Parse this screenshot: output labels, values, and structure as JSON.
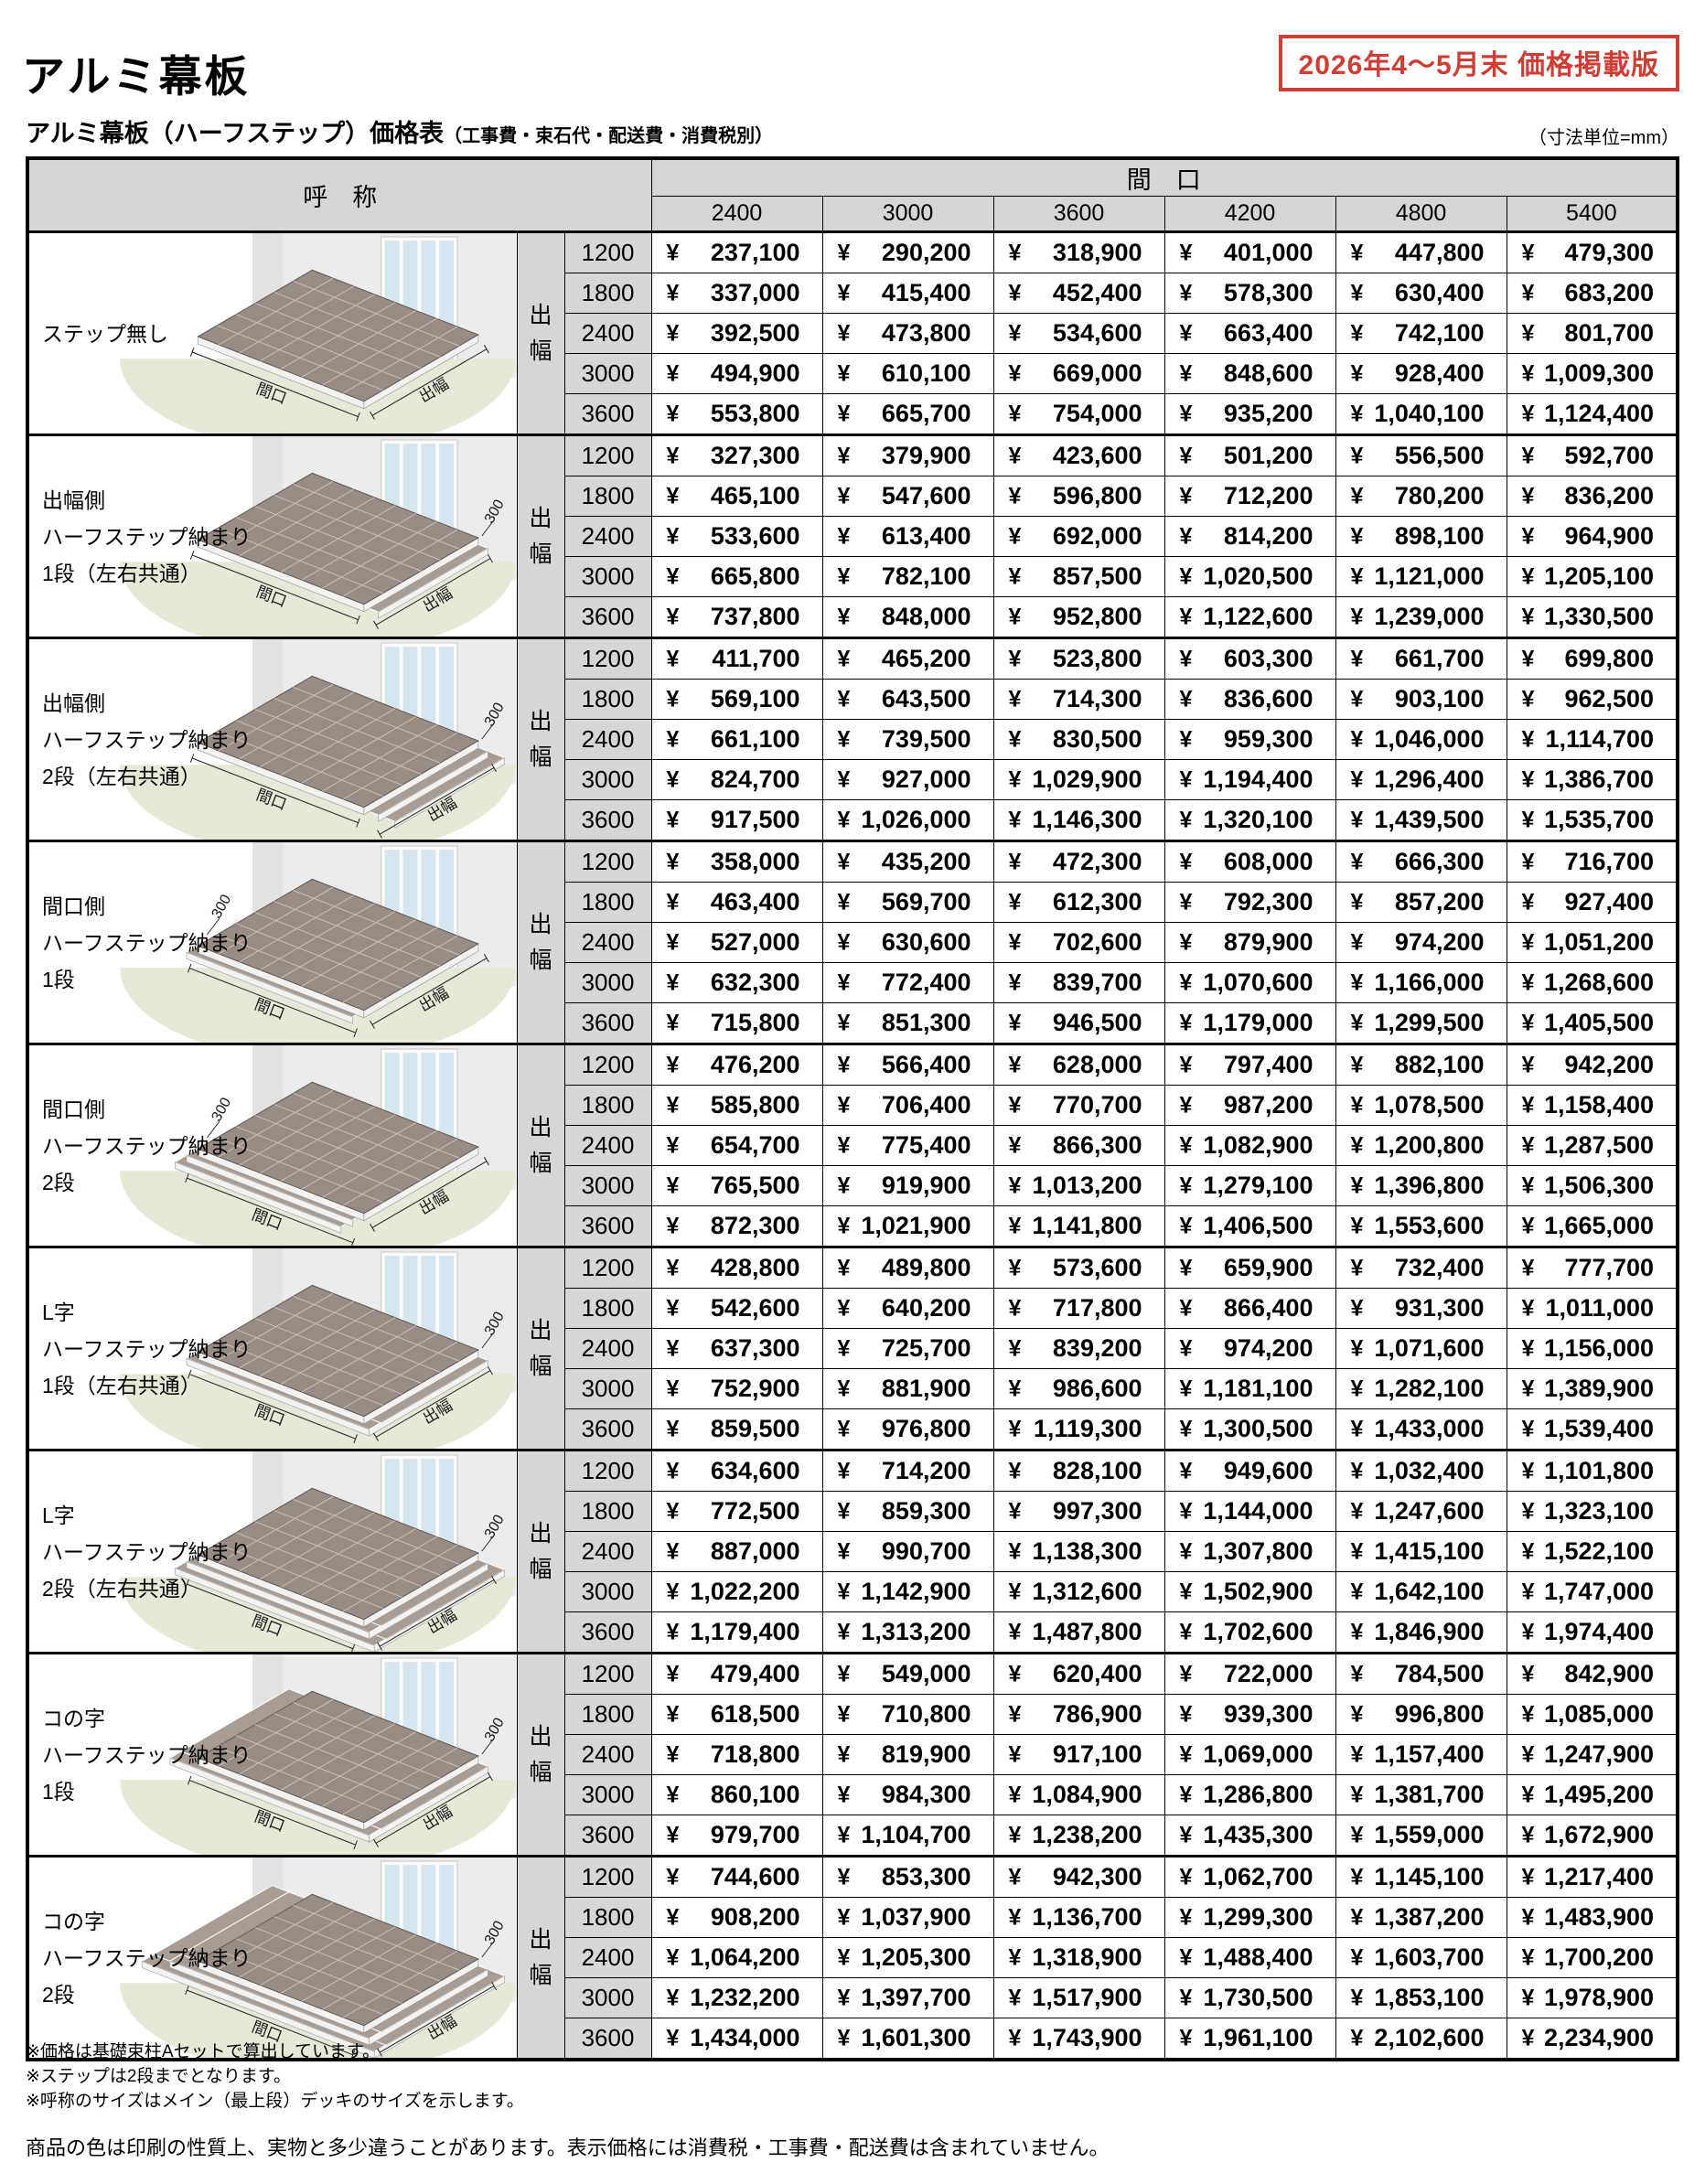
{
  "page": {
    "title": "アルミ幕板",
    "edition_badge": "2026年4～5月末 価格掲載版",
    "subtitle": "アルミ幕板（ハーフステップ）価格表",
    "subtitle_note": "（工事費・束石代・配送費・消費税別）",
    "unit_note": "（寸法単位=mm）",
    "footnotes": [
      "※価格は基礎束柱Aセットで算出しています。",
      "※ステップは2段までとなります。",
      "※呼称のサイズはメイン（最上段）デッキのサイズを示します。"
    ],
    "disclaimer": "商品の色は印刷の性質上、実物と多少違うことがあります。表示価格には消費税・工事費・配送費は含まれていません。"
  },
  "colors": {
    "accent": "#cf3e35",
    "header_gray": "#d5d6d8",
    "deck_top": "#998c84",
    "deck_grid": "#c9c0b9",
    "step_top": "#a99c93",
    "lawn": "#e5e9d6",
    "wall": "#ececec",
    "window_pane": "#d6e6f1"
  },
  "illustration": {
    "maguchi_label": "間口",
    "defuku_label": "出幅",
    "step_dim": "300"
  },
  "table": {
    "name_header": "呼　称",
    "width_header": "間　口",
    "depth_header": "出\n幅",
    "currency": "¥",
    "widths": [
      "2400",
      "3000",
      "3600",
      "4200",
      "4800",
      "5400"
    ],
    "depths": [
      "1200",
      "1800",
      "2400",
      "3000",
      "3600"
    ],
    "groups": [
      {
        "label": "ステップ無し",
        "illustration": {
          "steps": "none",
          "tiers": 0,
          "dim_side": null
        },
        "rows": [
          [
            "237,100",
            "290,200",
            "318,900",
            "401,000",
            "447,800",
            "479,300"
          ],
          [
            "337,000",
            "415,400",
            "452,400",
            "578,300",
            "630,400",
            "683,200"
          ],
          [
            "392,500",
            "473,800",
            "534,600",
            "663,400",
            "742,100",
            "801,700"
          ],
          [
            "494,900",
            "610,100",
            "669,000",
            "848,600",
            "928,400",
            "1,009,300"
          ],
          [
            "553,800",
            "665,700",
            "754,000",
            "935,200",
            "1,040,100",
            "1,124,400"
          ]
        ]
      },
      {
        "label": "出幅側\nハーフステップ納まり\n1段（左右共通）",
        "illustration": {
          "steps": "defuku",
          "tiers": 1,
          "dim_side": "right"
        },
        "rows": [
          [
            "327,300",
            "379,900",
            "423,600",
            "501,200",
            "556,500",
            "592,700"
          ],
          [
            "465,100",
            "547,600",
            "596,800",
            "712,200",
            "780,200",
            "836,200"
          ],
          [
            "533,600",
            "613,400",
            "692,000",
            "814,200",
            "898,100",
            "964,900"
          ],
          [
            "665,800",
            "782,100",
            "857,500",
            "1,020,500",
            "1,121,000",
            "1,205,100"
          ],
          [
            "737,800",
            "848,000",
            "952,800",
            "1,122,600",
            "1,239,000",
            "1,330,500"
          ]
        ]
      },
      {
        "label": "出幅側\nハーフステップ納まり\n2段（左右共通）",
        "illustration": {
          "steps": "defuku",
          "tiers": 2,
          "dim_side": "right"
        },
        "rows": [
          [
            "411,700",
            "465,200",
            "523,800",
            "603,300",
            "661,700",
            "699,800"
          ],
          [
            "569,100",
            "643,500",
            "714,300",
            "836,600",
            "903,100",
            "962,500"
          ],
          [
            "661,100",
            "739,500",
            "830,500",
            "959,300",
            "1,046,000",
            "1,114,700"
          ],
          [
            "824,700",
            "927,000",
            "1,029,900",
            "1,194,400",
            "1,296,400",
            "1,386,700"
          ],
          [
            "917,500",
            "1,026,000",
            "1,146,300",
            "1,320,100",
            "1,439,500",
            "1,535,700"
          ]
        ]
      },
      {
        "label": "間口側\nハーフステップ納まり\n1段",
        "illustration": {
          "steps": "maguchi",
          "tiers": 1,
          "dim_side": "left"
        },
        "rows": [
          [
            "358,000",
            "435,200",
            "472,300",
            "608,000",
            "666,300",
            "716,700"
          ],
          [
            "463,400",
            "569,700",
            "612,300",
            "792,300",
            "857,200",
            "927,400"
          ],
          [
            "527,000",
            "630,600",
            "702,600",
            "879,900",
            "974,200",
            "1,051,200"
          ],
          [
            "632,300",
            "772,400",
            "839,700",
            "1,070,600",
            "1,166,000",
            "1,268,600"
          ],
          [
            "715,800",
            "851,300",
            "946,500",
            "1,179,000",
            "1,299,500",
            "1,405,500"
          ]
        ]
      },
      {
        "label": "間口側\nハーフステップ納まり\n2段",
        "illustration": {
          "steps": "maguchi",
          "tiers": 2,
          "dim_side": "left"
        },
        "rows": [
          [
            "476,200",
            "566,400",
            "628,000",
            "797,400",
            "882,100",
            "942,200"
          ],
          [
            "585,800",
            "706,400",
            "770,700",
            "987,200",
            "1,078,500",
            "1,158,400"
          ],
          [
            "654,700",
            "775,400",
            "866,300",
            "1,082,900",
            "1,200,800",
            "1,287,500"
          ],
          [
            "765,500",
            "919,900",
            "1,013,200",
            "1,279,100",
            "1,396,800",
            "1,506,300"
          ],
          [
            "872,300",
            "1,021,900",
            "1,141,800",
            "1,406,500",
            "1,553,600",
            "1,665,000"
          ]
        ]
      },
      {
        "label": "L字\nハーフステップ納まり\n1段（左右共通）",
        "illustration": {
          "steps": "L",
          "tiers": 1,
          "dim_side": "right"
        },
        "rows": [
          [
            "428,800",
            "489,800",
            "573,600",
            "659,900",
            "732,400",
            "777,700"
          ],
          [
            "542,600",
            "640,200",
            "717,800",
            "866,400",
            "931,300",
            "1,011,000"
          ],
          [
            "637,300",
            "725,700",
            "839,200",
            "974,200",
            "1,071,600",
            "1,156,000"
          ],
          [
            "752,900",
            "881,900",
            "986,600",
            "1,181,100",
            "1,282,100",
            "1,389,900"
          ],
          [
            "859,500",
            "976,800",
            "1,119,300",
            "1,300,500",
            "1,433,000",
            "1,539,400"
          ]
        ]
      },
      {
        "label": "L字\nハーフステップ納まり\n2段（左右共通）",
        "illustration": {
          "steps": "L",
          "tiers": 2,
          "dim_side": "right"
        },
        "rows": [
          [
            "634,600",
            "714,200",
            "828,100",
            "949,600",
            "1,032,400",
            "1,101,800"
          ],
          [
            "772,500",
            "859,300",
            "997,300",
            "1,144,000",
            "1,247,600",
            "1,323,100"
          ],
          [
            "887,000",
            "990,700",
            "1,138,300",
            "1,307,800",
            "1,415,100",
            "1,522,100"
          ],
          [
            "1,022,200",
            "1,142,900",
            "1,312,600",
            "1,502,900",
            "1,642,100",
            "1,747,000"
          ],
          [
            "1,179,400",
            "1,313,200",
            "1,487,800",
            "1,702,600",
            "1,846,900",
            "1,974,400"
          ]
        ]
      },
      {
        "label": "コの字\nハーフステップ納まり\n1段",
        "illustration": {
          "steps": "U",
          "tiers": 1,
          "dim_side": "right"
        },
        "rows": [
          [
            "479,400",
            "549,000",
            "620,400",
            "722,000",
            "784,500",
            "842,900"
          ],
          [
            "618,500",
            "710,800",
            "786,900",
            "939,300",
            "996,800",
            "1,085,000"
          ],
          [
            "718,800",
            "819,900",
            "917,100",
            "1,069,000",
            "1,157,400",
            "1,247,900"
          ],
          [
            "860,100",
            "984,300",
            "1,084,900",
            "1,286,800",
            "1,381,700",
            "1,495,200"
          ],
          [
            "979,700",
            "1,104,700",
            "1,238,200",
            "1,435,300",
            "1,559,000",
            "1,672,900"
          ]
        ]
      },
      {
        "label": "コの字\nハーフステップ納まり\n2段",
        "illustration": {
          "steps": "U",
          "tiers": 2,
          "dim_side": "right"
        },
        "rows": [
          [
            "744,600",
            "853,300",
            "942,300",
            "1,062,700",
            "1,145,100",
            "1,217,400"
          ],
          [
            "908,200",
            "1,037,900",
            "1,136,700",
            "1,299,300",
            "1,387,200",
            "1,483,900"
          ],
          [
            "1,064,200",
            "1,205,300",
            "1,318,900",
            "1,488,400",
            "1,603,700",
            "1,700,200"
          ],
          [
            "1,232,200",
            "1,397,700",
            "1,517,900",
            "1,730,500",
            "1,853,100",
            "1,978,900"
          ],
          [
            "1,434,000",
            "1,601,300",
            "1,743,900",
            "1,961,100",
            "2,102,600",
            "2,234,900"
          ]
        ]
      }
    ]
  }
}
